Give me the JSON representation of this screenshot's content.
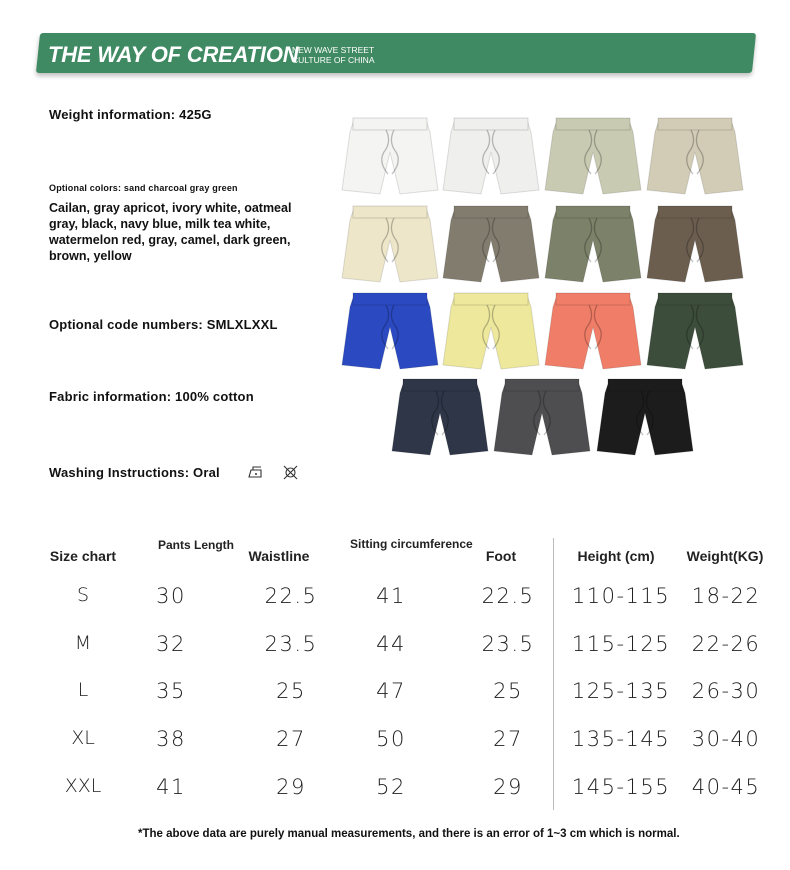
{
  "banner": {
    "title": "THE WAY OF CREATION",
    "subtitle_line1": "NEW WAVE STREET",
    "subtitle_line2": "CULTURE OF CHINA",
    "color": "#3f8a62"
  },
  "info": {
    "weight": "Weight information: 425G",
    "colors_label": "Optional colors: sand charcoal gray green",
    "colors_list": "Cailan, gray apricot, ivory white, oatmeal gray, black, navy blue, milk tea white, watermelon red, gray, camel, dark green, brown, yellow",
    "sizes": "Optional code numbers: SMLXLXXL",
    "fabric": "Fabric information: 100% cotton",
    "washing": "Washing Instructions: Oral",
    "washing_icons": [
      "iron-icon",
      "do-not-dry-clean-icon"
    ]
  },
  "swatches": [
    "#f4f4f2",
    "#efefed",
    "#c9cab2",
    "#d2ccb6",
    "#ede6c9",
    "#827c6e",
    "#7c8169",
    "#6b5e4f",
    "#2b4ac2",
    "#ede89c",
    "#f07d67",
    "#3c4d3b",
    "#2e3648",
    "#4e4d4f",
    "#1c1c1c"
  ],
  "size_chart": {
    "headers": [
      "Size chart",
      "Pants Length",
      "Waistline",
      "Sitting circumference",
      "Foot",
      "Height (cm)",
      "Weight(KG)"
    ],
    "rows": [
      [
        "S",
        "30",
        "22.5",
        "41",
        "22.5",
        "110-115",
        "18-22"
      ],
      [
        "M",
        "32",
        "23.5",
        "44",
        "23.5",
        "115-125",
        "22-26"
      ],
      [
        "L",
        "35",
        "25",
        "47",
        "25",
        "125-135",
        "26-30"
      ],
      [
        "XL",
        "38",
        "27",
        "50",
        "27",
        "135-145",
        "30-40"
      ],
      [
        "XXL",
        "41",
        "29",
        "52",
        "29",
        "145-155",
        "40-45"
      ]
    ]
  },
  "note": "*The above data are purely manual measurements, and there is an error of 1~3 cm which is normal."
}
